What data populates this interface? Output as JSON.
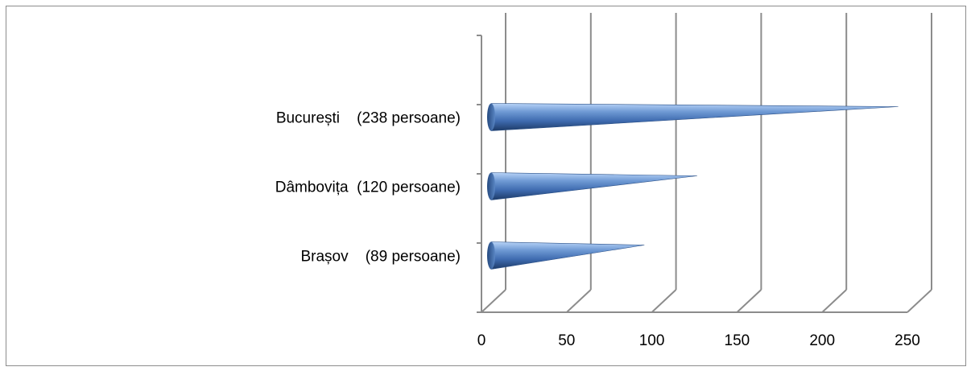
{
  "chart_data": {
    "type": "bar",
    "style": "3d-cone-horizontal",
    "categories": [
      "Brașov    (89 persoane)",
      "Dâmbovița  (120 persoane)",
      "București    (238 persoane)"
    ],
    "values": [
      89,
      120,
      238
    ],
    "xlim": [
      0,
      250
    ],
    "xticks": [
      "0",
      "50",
      "100",
      "150",
      "200",
      "250"
    ],
    "xtick_values": [
      0,
      50,
      100,
      150,
      200,
      250
    ],
    "grid": true,
    "legend": "none",
    "colors": {
      "bar": "#4f81bd",
      "bar_dark": "#1f3f6e",
      "bar_light": "#9ec1f0",
      "grid": "#8c8c8c",
      "frame": "#8c8c8c"
    }
  }
}
